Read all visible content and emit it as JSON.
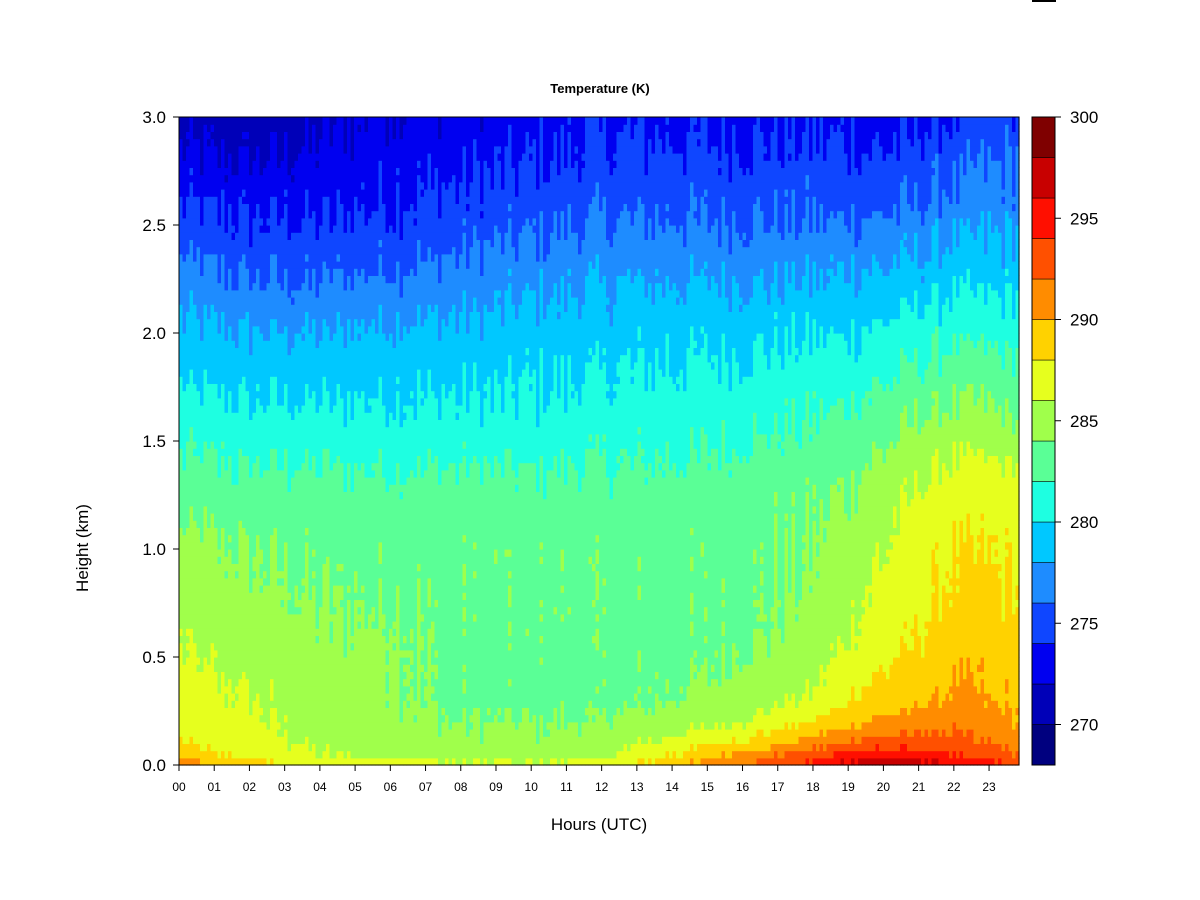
{
  "chart_data": {
    "type": "heatmap",
    "title": "Temperature (K)",
    "xlabel": "Hours (UTC)",
    "ylabel": "Height (km)",
    "xlim": [
      0,
      23.85
    ],
    "ylim": [
      0,
      3.0
    ],
    "x_ticks": [
      "00",
      "01",
      "02",
      "03",
      "04",
      "05",
      "06",
      "07",
      "08",
      "09",
      "10",
      "11",
      "12",
      "13",
      "14",
      "15",
      "16",
      "17",
      "18",
      "19",
      "20",
      "21",
      "22",
      "23"
    ],
    "y_ticks": [
      "0.0",
      "0.5",
      "1.0",
      "1.5",
      "2.0",
      "2.5",
      "3.0"
    ],
    "colorbar": {
      "vmin": 268,
      "vmax": 300,
      "ticks": [
        "270",
        "275",
        "280",
        "285",
        "290",
        "295",
        "300"
      ],
      "colors": [
        "#00007f",
        "#0000b8",
        "#0000f0",
        "#0f46ff",
        "#1e8cff",
        "#00c8ff",
        "#1effe1",
        "#5aff96",
        "#a0ff4b",
        "#e6ff1e",
        "#ffd200",
        "#ff8c00",
        "#ff5000",
        "#ff0f00",
        "#c80000",
        "#7f0000"
      ]
    },
    "hours": [
      0,
      2,
      4,
      6,
      8,
      10,
      12,
      14,
      16,
      18,
      19,
      20,
      21,
      22,
      23,
      23.85
    ],
    "heights_km": [
      0.0,
      0.05,
      0.1,
      0.2,
      0.3,
      0.5,
      0.75,
      1.0,
      1.3,
      1.6,
      2.0,
      2.3,
      2.6,
      3.0
    ],
    "temperature_K": [
      [
        291.0,
        289.0,
        287.0,
        287.0,
        286.5,
        286.5,
        287.0,
        289.5,
        292.0,
        295.0,
        297.0,
        298.0,
        297.0,
        296.0,
        295.0,
        294.0
      ],
      [
        289.0,
        287.5,
        286.0,
        285.5,
        285.0,
        285.0,
        285.5,
        288.0,
        290.5,
        293.0,
        294.5,
        295.5,
        295.0,
        294.0,
        293.0,
        292.0
      ],
      [
        288.0,
        287.0,
        285.5,
        285.0,
        284.5,
        284.5,
        285.0,
        286.5,
        288.5,
        291.0,
        292.5,
        293.0,
        293.0,
        292.5,
        292.0,
        291.0
      ],
      [
        287.5,
        286.5,
        285.0,
        284.5,
        284.0,
        284.0,
        284.0,
        285.0,
        286.0,
        288.0,
        289.5,
        290.5,
        291.0,
        291.5,
        291.0,
        290.0
      ],
      [
        287.0,
        286.0,
        285.0,
        284.5,
        283.5,
        283.5,
        283.5,
        284.0,
        285.0,
        286.5,
        288.0,
        289.0,
        289.5,
        290.5,
        290.0,
        289.5
      ],
      [
        286.0,
        285.5,
        284.5,
        284.5,
        283.5,
        283.5,
        283.5,
        283.5,
        284.0,
        285.0,
        286.5,
        287.5,
        288.5,
        289.5,
        289.5,
        289.0
      ],
      [
        285.5,
        284.5,
        284.0,
        284.0,
        283.5,
        283.5,
        283.5,
        283.5,
        283.5,
        284.5,
        285.5,
        286.5,
        287.5,
        288.5,
        288.5,
        288.0
      ],
      [
        284.5,
        284.0,
        283.5,
        283.5,
        283.5,
        283.5,
        283.5,
        283.5,
        283.5,
        284.0,
        285.0,
        286.0,
        287.0,
        288.0,
        288.0,
        287.5
      ],
      [
        283.0,
        282.5,
        282.5,
        282.5,
        282.5,
        282.5,
        282.5,
        282.5,
        283.0,
        283.5,
        284.0,
        285.0,
        286.0,
        287.0,
        287.0,
        286.5
      ],
      [
        281.0,
        280.5,
        280.5,
        280.5,
        280.5,
        280.5,
        281.0,
        281.0,
        281.5,
        282.0,
        282.5,
        283.0,
        284.0,
        284.5,
        284.5,
        284.0
      ],
      [
        278.5,
        278.0,
        278.0,
        278.5,
        278.5,
        279.0,
        279.0,
        279.5,
        279.5,
        280.0,
        280.0,
        280.5,
        281.0,
        281.5,
        281.5,
        281.0
      ],
      [
        276.5,
        275.5,
        275.5,
        276.0,
        276.5,
        277.0,
        277.5,
        277.5,
        277.5,
        277.5,
        278.0,
        278.0,
        278.5,
        279.0,
        279.0,
        279.0
      ],
      [
        274.0,
        273.5,
        273.5,
        274.0,
        274.5,
        275.0,
        275.5,
        275.5,
        275.5,
        275.5,
        275.5,
        275.5,
        276.0,
        276.5,
        277.0,
        277.0
      ],
      [
        271.0,
        270.5,
        271.5,
        272.5,
        272.5,
        273.0,
        273.5,
        273.5,
        273.5,
        273.5,
        273.5,
        273.0,
        273.5,
        274.0,
        274.5,
        275.0
      ]
    ]
  }
}
